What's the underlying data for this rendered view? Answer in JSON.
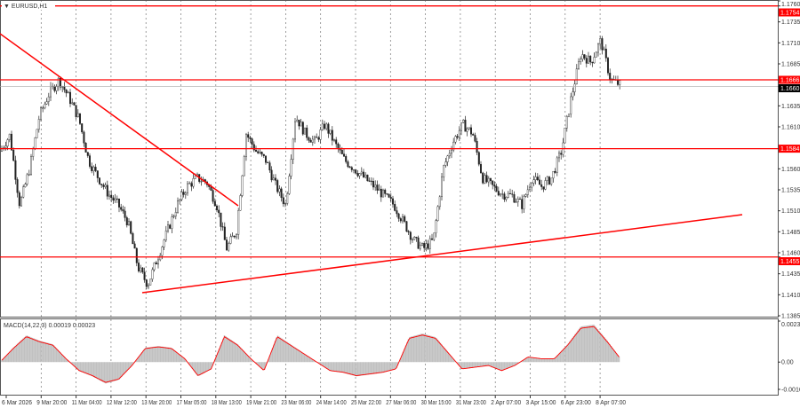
{
  "symbol_label": "EURUSD,H1",
  "chart_data": {
    "type": "candlestick",
    "title": "EURUSD,H1",
    "ylim": [
      1.1385,
      1.176
    ],
    "y_ticks": [
      "1.1760",
      "1.1735",
      "1.1710",
      "1.1685",
      "1.1635",
      "1.1610",
      "1.1560",
      "1.1535",
      "1.1510",
      "1.1485",
      "1.1460",
      "1.1435",
      "1.1410",
      "1.1385"
    ],
    "x_ticks": [
      "6 Mar 2026",
      "9 Mar 20:00",
      "11 Mar 04:00",
      "12 Mar 12:00",
      "13 Mar 20:00",
      "17 Mar 05:00",
      "18 Mar 13:00",
      "19 Mar 21:00",
      "23 Mar 06:00",
      "24 Mar 14:00",
      "25 Mar 22:00",
      "27 Mar 06:00",
      "30 Mar 15:00",
      "31 Mar 23:00",
      "2 Apr 07:00",
      "3 Apr 15:00",
      "6 Apr 23:00",
      "8 Apr 07:00"
    ],
    "approx_close_path": [
      1.1581,
      1.16,
      1.1517,
      1.156,
      1.1623,
      1.165,
      1.1666,
      1.1645,
      1.162,
      1.157,
      1.1549,
      1.153,
      1.1517,
      1.1496,
      1.1443,
      1.1422,
      1.1454,
      1.1486,
      1.1517,
      1.1539,
      1.1549,
      1.1544,
      1.1517,
      1.1465,
      1.1486,
      1.1602,
      1.1581,
      1.157,
      1.154,
      1.1517,
      1.1623,
      1.1602,
      1.1592,
      1.1613,
      1.159,
      1.157,
      1.156,
      1.1549,
      1.1539,
      1.1528,
      1.1517,
      1.1496,
      1.1475,
      1.1465,
      1.1475,
      1.156,
      1.1592,
      1.1613,
      1.1602,
      1.1549,
      1.1539,
      1.153,
      1.1528,
      1.1517,
      1.1549,
      1.1539,
      1.1549,
      1.1581,
      1.1645,
      1.1697,
      1.1687,
      1.1713,
      1.1666,
      1.166
    ],
    "levels": [
      {
        "label": "1.1754",
        "color": "#ff0000"
      },
      {
        "label": "1.1666",
        "color": "#ff0000"
      },
      {
        "label": "1.1584",
        "color": "#ff0000"
      },
      {
        "label": "1.1455",
        "color": "#ff0000"
      }
    ],
    "current_price": "1.1660",
    "indicator": {
      "label": "MACD(14,22,3) 0.00019 0.00023",
      "y_ticks": [
        "0.00235",
        "0.00",
        "-0.00163"
      ],
      "ylim": [
        -0.00163,
        0.00235
      ],
      "approx_histogram_path": [
        0,
        0.0008,
        0.0015,
        0.0012,
        0.001,
        0.0002,
        -0.0005,
        -0.0008,
        -0.0012,
        -0.001,
        -0.0002,
        0.0008,
        0.0009,
        0.0008,
        0.0002,
        -0.0008,
        -0.0004,
        0.0015,
        0.001,
        0.0002,
        -0.0005,
        0.0015,
        0.001,
        0.0005,
        0,
        -0.0005,
        -0.0006,
        -0.0008,
        -0.0007,
        -0.0006,
        -0.0004,
        0.0014,
        0.0016,
        0.0014,
        0.0005,
        -0.0004,
        -0.0003,
        -0.0002,
        -0.0005,
        -0.0002,
        0.0003,
        0.0002,
        0.0002,
        0.001,
        0.002,
        0.0021,
        0.0012,
        0.0002
      ],
      "histogram_color": "#c0c0c0",
      "signal_color": "#ff0000"
    }
  }
}
